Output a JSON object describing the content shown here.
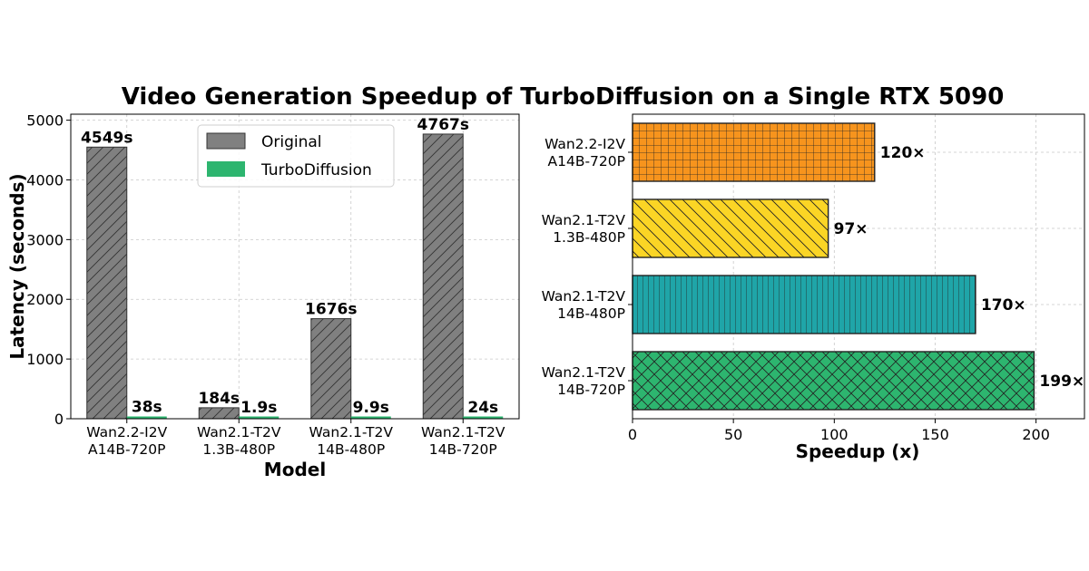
{
  "title": "Video Generation Speedup of TurboDiffusion on a Single RTX 5090",
  "chart_data": [
    {
      "type": "bar",
      "orientation": "vertical",
      "categories": [
        "Wan2.2-I2V\nA14B-720P",
        "Wan2.1-T2V\n1.3B-480P",
        "Wan2.1-T2V\n14B-480P",
        "Wan2.1-T2V\n14B-720P"
      ],
      "series": [
        {
          "name": "Original",
          "values": [
            4549,
            184,
            1676,
            4767
          ],
          "labels": [
            "4549s",
            "184s",
            "1676s",
            "4767s"
          ],
          "color": "#808080",
          "hatch": "diagonal"
        },
        {
          "name": "TurboDiffusion",
          "values": [
            38,
            1.9,
            9.9,
            24
          ],
          "labels": [
            "38s",
            "1.9s",
            "9.9s",
            "24s"
          ],
          "color": "#2db56f",
          "hatch": "none"
        }
      ],
      "xlabel": "Model",
      "ylabel": "Latency (seconds)",
      "ylim": [
        0,
        5100
      ],
      "yticks": [
        0,
        1000,
        2000,
        3000,
        4000,
        5000
      ],
      "grid": true,
      "legend": "top-center"
    },
    {
      "type": "bar",
      "orientation": "horizontal",
      "categories": [
        "Wan2.2-I2V\nA14B-720P",
        "Wan2.1-T2V\n1.3B-480P",
        "Wan2.1-T2V\n14B-480P",
        "Wan2.1-T2V\n14B-720P"
      ],
      "values": [
        120,
        97,
        170,
        199
      ],
      "labels": [
        "120×",
        "97×",
        "170×",
        "199×"
      ],
      "colors": [
        "#f7941d",
        "#fbd525",
        "#1fa5a8",
        "#2db56f"
      ],
      "hatches": [
        "grid",
        "backslash",
        "vertical",
        "cross"
      ],
      "xlabel": "Speedup (x)",
      "ylabel": "",
      "xlim": [
        0,
        224
      ],
      "xticks": [
        0,
        50,
        100,
        150,
        200
      ],
      "grid": true
    }
  ]
}
